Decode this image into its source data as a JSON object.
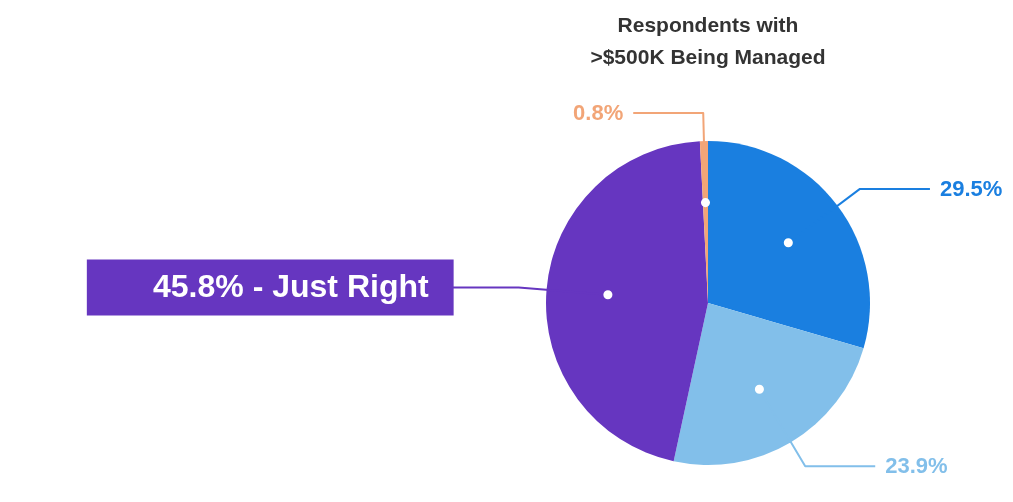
{
  "chart_data": {
    "type": "pie",
    "title": "Respondents with\n>$500K Being Managed",
    "categories": [
      null,
      null,
      "45.8% - Just Right",
      null
    ],
    "values": [
      29.5,
      23.9,
      45.8,
      0.8
    ],
    "colors": [
      "#1a7fe0",
      "#82bfea",
      "#6636c0",
      "#f2a577"
    ],
    "value_labels": [
      "29.5%",
      "23.9%",
      null,
      "0.8%"
    ]
  }
}
